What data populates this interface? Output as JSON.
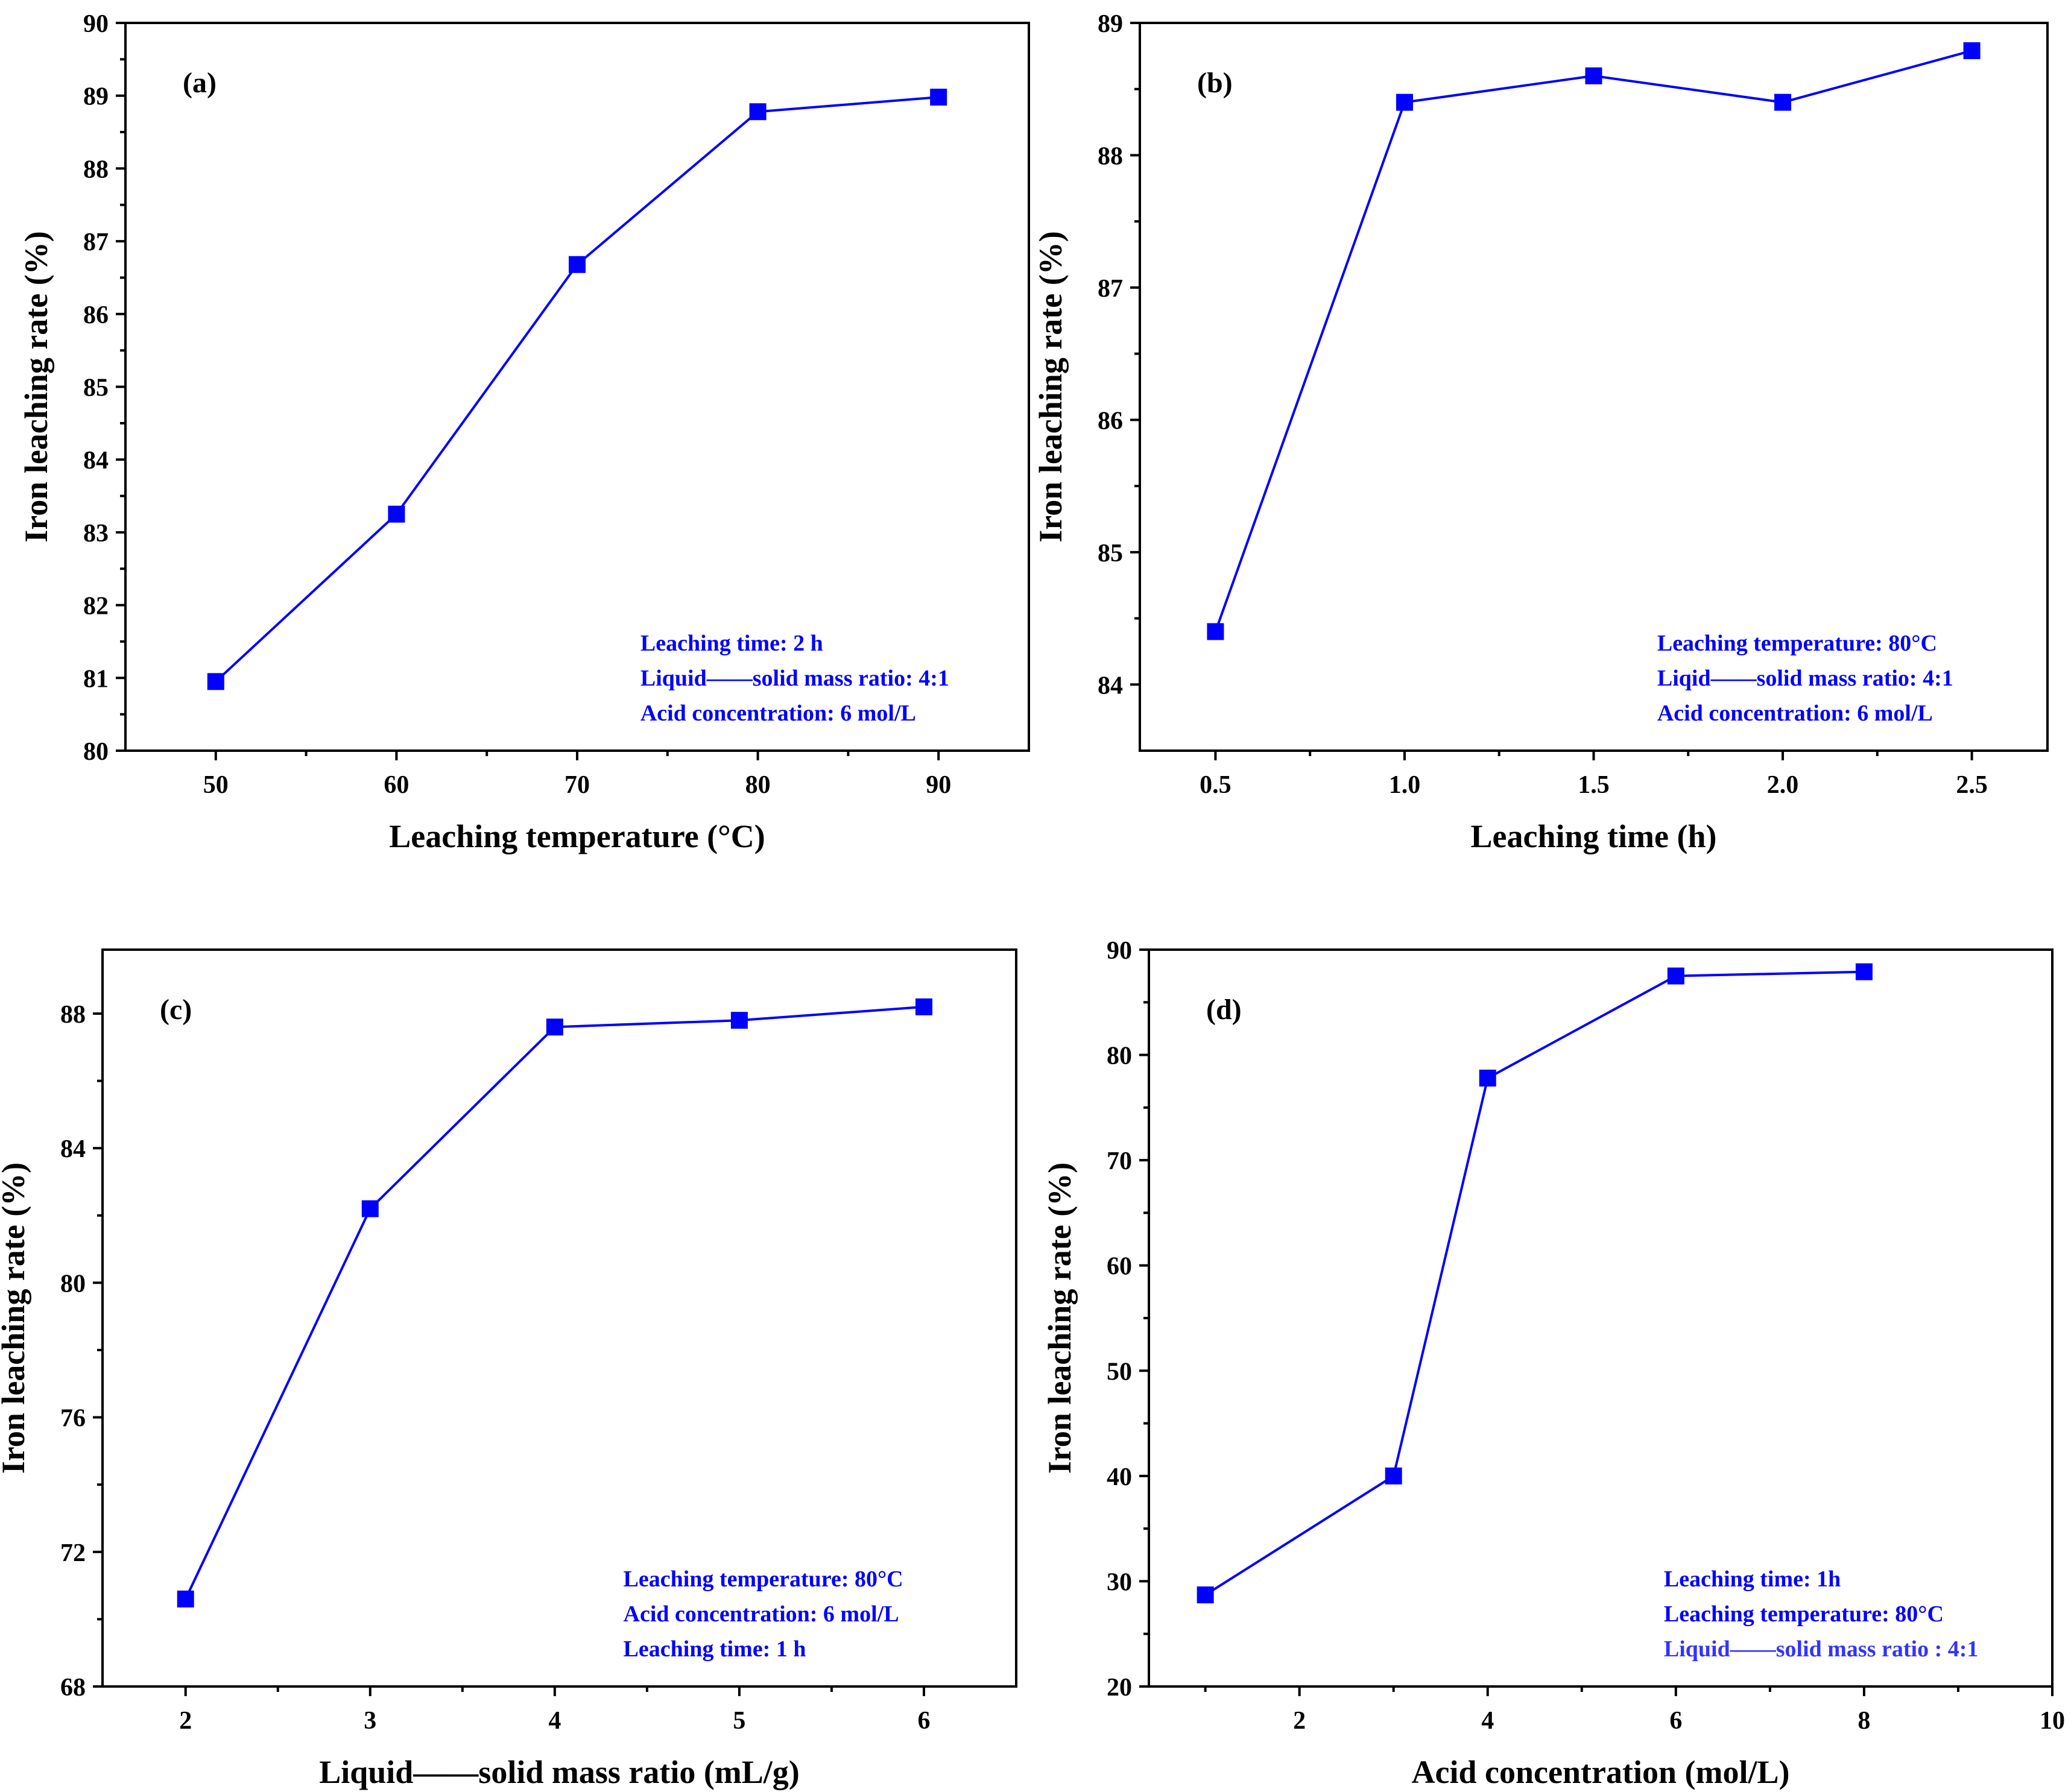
{
  "colors": {
    "series": "#0000ff",
    "note_text": "#0000ff",
    "axis": "#000000"
  },
  "chart_data": [
    {
      "type": "line",
      "panel_label": "(a)",
      "xlabel": "Leaching temperature (°C)",
      "ylabel": "Iron leaching rate (%)",
      "x": [
        50,
        60,
        70,
        80,
        90
      ],
      "y": [
        80.95,
        83.25,
        86.68,
        88.78,
        88.98
      ],
      "xlim": [
        45,
        95
      ],
      "ylim": [
        80,
        90
      ],
      "xticks": [
        50,
        60,
        70,
        80,
        90
      ],
      "xtick_labels": [
        "50",
        "60",
        "70",
        "80",
        "90"
      ],
      "xminor": [
        55,
        65,
        75,
        85
      ],
      "yticks": [
        80,
        81,
        82,
        83,
        84,
        85,
        86,
        87,
        88,
        89,
        90
      ],
      "ytick_labels": [
        "80",
        "81",
        "82",
        "83",
        "84",
        "85",
        "86",
        "87",
        "88",
        "89",
        "90"
      ],
      "marker": "square",
      "annotations": [
        "Leaching time: 2 h",
        "Liquid——solid mass ratio: 4:1",
        "Acid concentration: 6 mol/L"
      ],
      "annotation_position": "bottom-right"
    },
    {
      "type": "line",
      "panel_label": "(b)",
      "xlabel": "Leaching time (h)",
      "ylabel": "Iron leaching rate (%)",
      "x": [
        0.5,
        1.0,
        1.5,
        2.0,
        2.5
      ],
      "y": [
        84.4,
        88.4,
        88.6,
        88.4,
        88.79
      ],
      "xlim": [
        0.3,
        2.7
      ],
      "ylim": [
        83.5,
        89
      ],
      "xticks": [
        0.5,
        1.0,
        1.5,
        2.0,
        2.5
      ],
      "xtick_labels": [
        "0.5",
        "1.0",
        "1.5",
        "2.0",
        "2.5"
      ],
      "xminor": [
        0.75,
        1.25,
        1.75,
        2.25
      ],
      "yticks": [
        84,
        85,
        86,
        87,
        88,
        89
      ],
      "ytick_labels": [
        "84",
        "85",
        "86",
        "87",
        "88",
        "89"
      ],
      "marker": "square",
      "annotations": [
        "Leaching temperature: 80°C",
        "Liqid——solid mass ratio: 4:1",
        "Acid concentration: 6 mol/L"
      ],
      "annotation_position": "bottom-right"
    },
    {
      "type": "line",
      "panel_label": "(c)",
      "xlabel": "Liquid——solid mass ratio (mL/g)",
      "ylabel": "Iron leaching rate (%)",
      "x": [
        2,
        3,
        4,
        5,
        6
      ],
      "y": [
        70.6,
        82.2,
        87.6,
        87.8,
        88.2
      ],
      "xlim": [
        1.55,
        6.5
      ],
      "ylim": [
        68,
        89.9
      ],
      "xticks": [
        2,
        3,
        4,
        5,
        6
      ],
      "xtick_labels": [
        "2",
        "3",
        "4",
        "5",
        "6"
      ],
      "xminor": [
        2.5,
        3.5,
        4.5,
        5.5
      ],
      "yticks": [
        68,
        72,
        76,
        80,
        84,
        88
      ],
      "ytick_labels": [
        "68",
        "72",
        "76",
        "80",
        "84",
        "88"
      ],
      "marker": "square",
      "annotations": [
        "Leaching temperature: 80°C",
        "Acid concentration: 6 mol/L",
        "Leaching time: 1 h"
      ],
      "annotation_position": "bottom-right"
    },
    {
      "type": "line",
      "panel_label": "(d)",
      "xlabel": "Acid concentration (mol/L)",
      "ylabel": "Iron leaching rate (%)",
      "x": [
        1,
        3,
        4,
        6,
        8
      ],
      "y": [
        28.7,
        40,
        77.8,
        87.5,
        87.9
      ],
      "xlim": [
        0.4,
        10
      ],
      "ylim": [
        20,
        90
      ],
      "xticks": [
        2,
        4,
        6,
        8,
        10
      ],
      "xtick_labels": [
        "2",
        "4",
        "6",
        "8",
        "10"
      ],
      "xminor": [
        1,
        3,
        5,
        7,
        9
      ],
      "yticks": [
        20,
        30,
        40,
        50,
        60,
        70,
        80,
        90
      ],
      "ytick_labels": [
        "20",
        "30",
        "40",
        "50",
        "60",
        "70",
        "80",
        "90"
      ],
      "marker": "square",
      "annotations": [
        "Leaching time: 1h",
        "Leaching temperature: 80°C",
        "Liquid——solid mass ratio : 4:1"
      ],
      "annotation_colors": [
        "#0000ff",
        "#0000ff",
        "#3333ff"
      ],
      "annotation_position": "bottom-right"
    }
  ]
}
